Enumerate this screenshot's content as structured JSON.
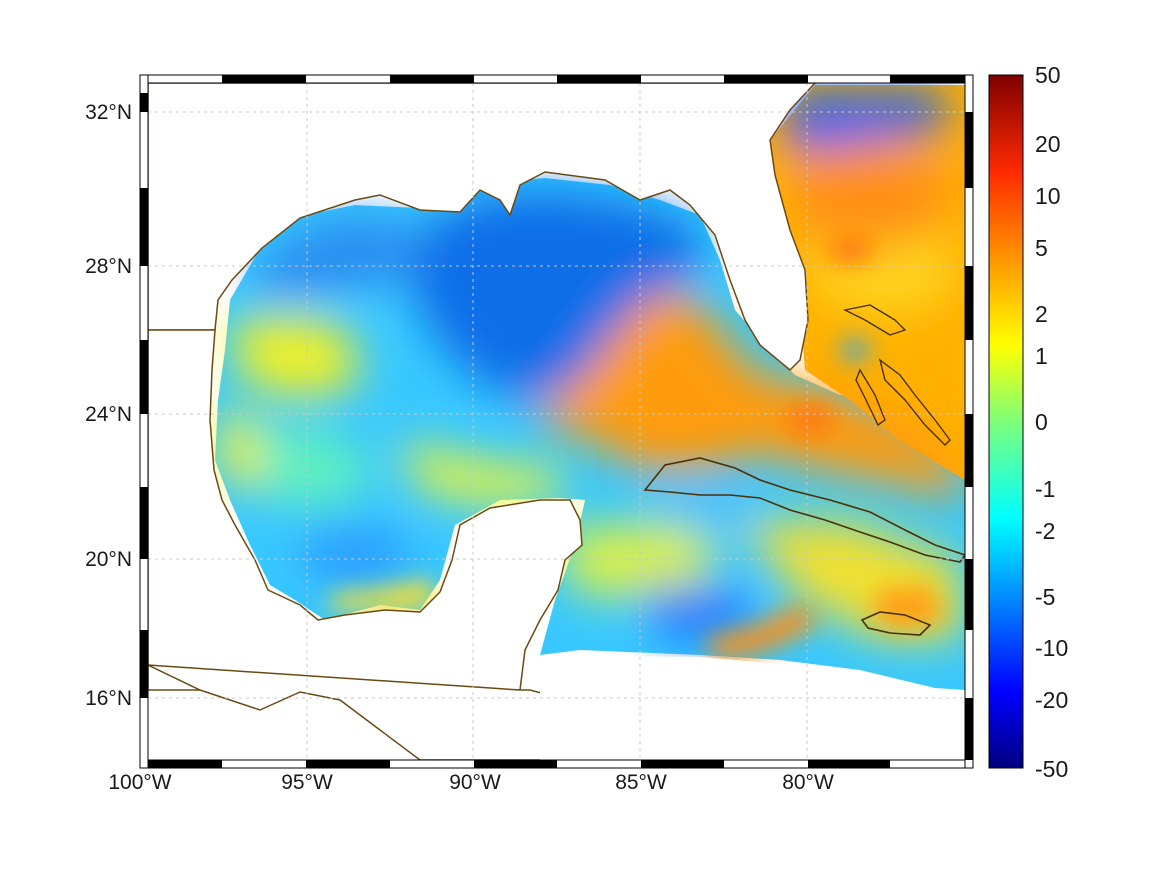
{
  "figure": {
    "lon_ticks": [
      "100°W",
      "95°W",
      "90°W",
      "85°W",
      "80°W"
    ],
    "lat_ticks": [
      "32°N",
      "28°N",
      "24°N",
      "20°N",
      "16°N"
    ],
    "colorbar": {
      "labels": [
        "50",
        "20",
        "10",
        "5",
        "2",
        "1",
        "0",
        "-1",
        "-2",
        "-5",
        "-10",
        "-20",
        "-50"
      ],
      "colormap": "jet",
      "range": [
        -50,
        50
      ]
    },
    "colors": {
      "coastline": "#6b4a12",
      "grid": "#c8c8c8",
      "frame_dark": "#000000",
      "frame_light": "#ffffff"
    }
  }
}
